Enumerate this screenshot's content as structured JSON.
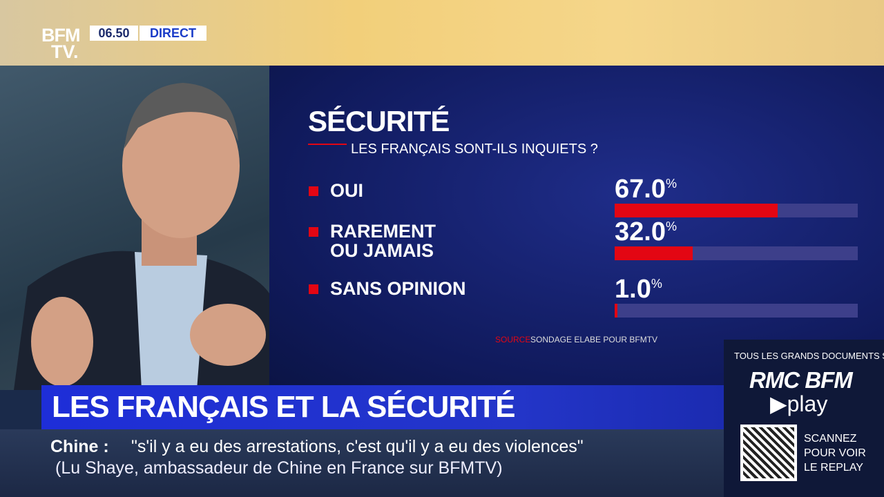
{
  "header": {
    "logo_top": "BFM",
    "logo_bottom": "TV.",
    "time": "06.50",
    "live": "DIRECT"
  },
  "chart_data": {
    "type": "bar",
    "orientation": "horizontal",
    "title": "SÉCURITÉ",
    "subtitle": "LES FRANÇAIS SONT-ILS INQUIETS ?",
    "categories": [
      "OUI",
      "RAREMENT\nOU JAMAIS",
      "SANS OPINION"
    ],
    "values": [
      67.0,
      32.0,
      1.0
    ],
    "value_labels": [
      "67.0%",
      "32.0%",
      "1.0%"
    ],
    "xlim": [
      0,
      100
    ],
    "color": "#e30613",
    "source_label": "SOURCE",
    "source": "SONDAGE ELABE POUR BFMTV"
  },
  "headline": "LES FRANÇAIS ET LA SÉCURITÉ",
  "ticker": {
    "topic": "Chine :",
    "quote": "\"s'il y a eu des arrestations, c'est qu'il y a eu des violences\"",
    "attribution": "(Lu Shaye, ambassadeur de Chine en France sur BFMTV)"
  },
  "promo": {
    "intro": "TOUS LES GRANDS DOCUMENTS SUR",
    "brand": "RMC BFM",
    "brand_sub": "▶play",
    "cta": "SCANNEZ\nPOUR VOIR\nLE REPLAY"
  }
}
